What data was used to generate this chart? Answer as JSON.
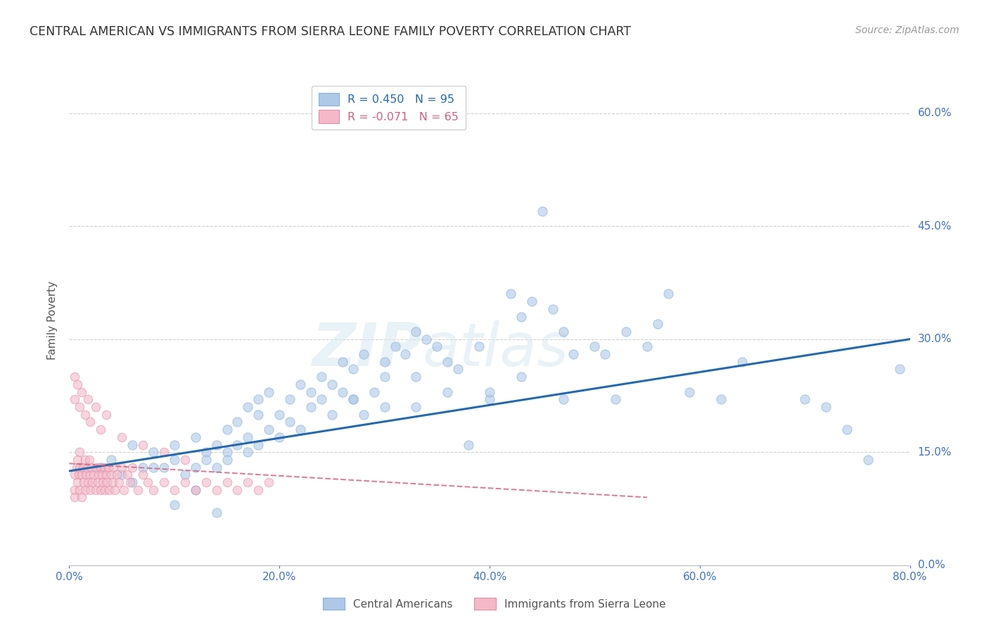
{
  "title": "CENTRAL AMERICAN VS IMMIGRANTS FROM SIERRA LEONE FAMILY POVERTY CORRELATION CHART",
  "source": "Source: ZipAtlas.com",
  "ylabel_label": "Family Poverty",
  "xmin": 0.0,
  "xmax": 0.8,
  "ymin": 0.0,
  "ymax": 0.65,
  "watermark_zip": "ZIP",
  "watermark_atlas": "atlas",
  "legend_blue_label": "R = 0.450   N = 95",
  "legend_pink_label": "R = -0.071   N = 65",
  "legend_blue_ca": "Central Americans",
  "legend_pink_sl": "Immigrants from Sierra Leone",
  "blue_color": "#aec8e8",
  "blue_line_color": "#2469b0",
  "pink_color": "#f4b8c8",
  "pink_line_color": "#d06080",
  "background_color": "#ffffff",
  "grid_color": "#cccccc",
  "title_color": "#333333",
  "axis_color": "#4472c4",
  "yticks": [
    0.0,
    0.15,
    0.3,
    0.45,
    0.6
  ],
  "xticks": [
    0.0,
    0.2,
    0.4,
    0.6,
    0.8
  ],
  "blue_scatter_x": [
    0.03,
    0.04,
    0.05,
    0.06,
    0.07,
    0.08,
    0.09,
    0.1,
    0.1,
    0.11,
    0.12,
    0.12,
    0.13,
    0.13,
    0.14,
    0.14,
    0.15,
    0.15,
    0.15,
    0.16,
    0.16,
    0.17,
    0.17,
    0.17,
    0.18,
    0.18,
    0.18,
    0.19,
    0.19,
    0.2,
    0.2,
    0.21,
    0.21,
    0.22,
    0.22,
    0.23,
    0.23,
    0.24,
    0.24,
    0.25,
    0.25,
    0.26,
    0.26,
    0.27,
    0.27,
    0.28,
    0.28,
    0.29,
    0.3,
    0.3,
    0.31,
    0.32,
    0.33,
    0.33,
    0.34,
    0.35,
    0.36,
    0.37,
    0.38,
    0.39,
    0.4,
    0.42,
    0.43,
    0.44,
    0.45,
    0.46,
    0.47,
    0.48,
    0.5,
    0.52,
    0.53,
    0.55,
    0.57,
    0.59,
    0.62,
    0.64,
    0.7,
    0.72,
    0.74,
    0.76,
    0.79,
    0.06,
    0.08,
    0.1,
    0.12,
    0.14,
    0.27,
    0.3,
    0.33,
    0.36,
    0.4,
    0.43,
    0.47,
    0.51,
    0.56
  ],
  "blue_scatter_y": [
    0.13,
    0.14,
    0.12,
    0.16,
    0.13,
    0.15,
    0.13,
    0.14,
    0.16,
    0.12,
    0.13,
    0.17,
    0.15,
    0.14,
    0.16,
    0.13,
    0.15,
    0.18,
    0.14,
    0.16,
    0.19,
    0.15,
    0.21,
    0.17,
    0.2,
    0.22,
    0.16,
    0.18,
    0.23,
    0.2,
    0.17,
    0.22,
    0.19,
    0.24,
    0.18,
    0.23,
    0.21,
    0.25,
    0.22,
    0.24,
    0.2,
    0.23,
    0.27,
    0.22,
    0.26,
    0.2,
    0.28,
    0.23,
    0.27,
    0.21,
    0.29,
    0.28,
    0.31,
    0.25,
    0.3,
    0.29,
    0.23,
    0.26,
    0.16,
    0.29,
    0.22,
    0.36,
    0.33,
    0.35,
    0.47,
    0.34,
    0.31,
    0.28,
    0.29,
    0.22,
    0.31,
    0.29,
    0.36,
    0.23,
    0.22,
    0.27,
    0.22,
    0.21,
    0.18,
    0.14,
    0.26,
    0.11,
    0.13,
    0.08,
    0.1,
    0.07,
    0.22,
    0.25,
    0.21,
    0.27,
    0.23,
    0.25,
    0.22,
    0.28,
    0.32
  ],
  "pink_scatter_x": [
    0.005,
    0.005,
    0.005,
    0.007,
    0.008,
    0.008,
    0.009,
    0.01,
    0.01,
    0.01,
    0.012,
    0.012,
    0.013,
    0.014,
    0.015,
    0.015,
    0.016,
    0.017,
    0.018,
    0.019,
    0.02,
    0.02,
    0.021,
    0.022,
    0.023,
    0.025,
    0.026,
    0.027,
    0.028,
    0.03,
    0.03,
    0.031,
    0.032,
    0.033,
    0.034,
    0.035,
    0.036,
    0.037,
    0.038,
    0.04,
    0.041,
    0.042,
    0.043,
    0.045,
    0.047,
    0.05,
    0.052,
    0.055,
    0.058,
    0.06,
    0.065,
    0.07,
    0.075,
    0.08,
    0.09,
    0.1,
    0.11,
    0.12,
    0.13,
    0.14,
    0.15,
    0.16,
    0.17,
    0.18,
    0.19
  ],
  "pink_scatter_y": [
    0.12,
    0.1,
    0.09,
    0.13,
    0.14,
    0.11,
    0.12,
    0.13,
    0.1,
    0.15,
    0.12,
    0.09,
    0.13,
    0.11,
    0.14,
    0.1,
    0.12,
    0.13,
    0.11,
    0.14,
    0.12,
    0.1,
    0.13,
    0.11,
    0.12,
    0.1,
    0.13,
    0.11,
    0.12,
    0.13,
    0.1,
    0.12,
    0.11,
    0.13,
    0.1,
    0.12,
    0.11,
    0.13,
    0.1,
    0.12,
    0.11,
    0.13,
    0.1,
    0.12,
    0.11,
    0.13,
    0.1,
    0.12,
    0.11,
    0.13,
    0.1,
    0.12,
    0.11,
    0.1,
    0.11,
    0.1,
    0.11,
    0.1,
    0.11,
    0.1,
    0.11,
    0.1,
    0.11,
    0.1,
    0.11
  ],
  "pink_high_x": [
    0.005,
    0.005,
    0.008,
    0.01,
    0.012,
    0.015,
    0.018,
    0.02,
    0.025,
    0.03,
    0.035,
    0.05,
    0.07,
    0.09,
    0.11
  ],
  "pink_high_y": [
    0.25,
    0.22,
    0.24,
    0.21,
    0.23,
    0.2,
    0.22,
    0.19,
    0.21,
    0.18,
    0.2,
    0.17,
    0.16,
    0.15,
    0.14
  ],
  "blue_line_x": [
    0.0,
    0.8
  ],
  "blue_line_y": [
    0.125,
    0.3
  ],
  "pink_line_x": [
    0.0,
    0.55
  ],
  "pink_line_y": [
    0.135,
    0.09
  ]
}
